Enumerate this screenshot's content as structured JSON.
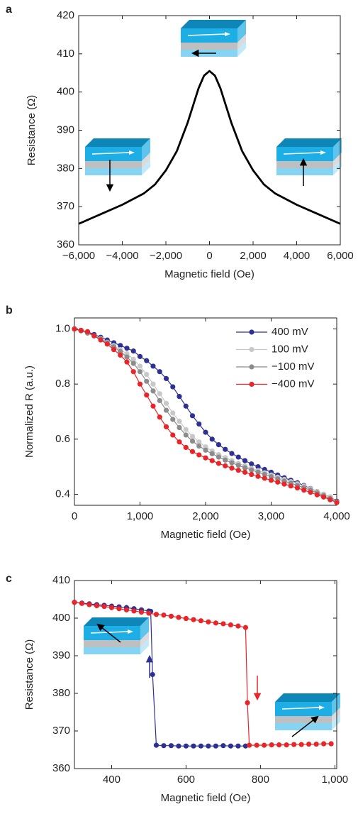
{
  "chart_data": [
    {
      "type": "line",
      "label": "a",
      "xlabel": "Magnetic field (Oe)",
      "ylabel": "Resistance (Ω)",
      "x": [
        -6000,
        -5000,
        -4000,
        -3000,
        -2500,
        -2000,
        -1500,
        -1000,
        -750,
        -500,
        -250,
        0,
        250,
        500,
        750,
        1000,
        1500,
        2000,
        2500,
        3000,
        4000,
        5000,
        6000
      ],
      "series": [
        {
          "color": "#000000",
          "values": [
            365.5,
            368,
            370.5,
            373.5,
            375.8,
            379.5,
            384.5,
            392,
            396.5,
            401,
            404.3,
            405.5,
            404.3,
            401,
            396.5,
            392,
            384.5,
            379.5,
            375.8,
            373.5,
            370.5,
            368,
            365.5
          ]
        }
      ],
      "xlim": [
        -6000,
        6000
      ],
      "xticks": [
        {
          "value": -6000,
          "label": "−6,000"
        },
        {
          "value": -4000,
          "label": "−4,000"
        },
        {
          "value": -2000,
          "label": "−2,000"
        },
        0,
        {
          "value": 2000,
          "label": "2,000"
        },
        {
          "value": 4000,
          "label": "4,000"
        },
        {
          "value": 6000,
          "label": "6,000"
        }
      ],
      "ylim": [
        360,
        420
      ],
      "yticks": [
        360,
        370,
        380,
        390,
        400,
        410,
        420
      ],
      "markers": false
    },
    {
      "type": "line",
      "label": "b",
      "xlabel": "Magnetic field (Oe)",
      "ylabel": "Normalized R (a.u.)",
      "x": [
        0,
        100,
        200,
        300,
        400,
        500,
        600,
        700,
        800,
        900,
        1000,
        1100,
        1200,
        1300,
        1400,
        1500,
        1600,
        1700,
        1800,
        1900,
        2000,
        2100,
        2200,
        2300,
        2400,
        2500,
        2600,
        2700,
        2800,
        2900,
        3000,
        3100,
        3200,
        3300,
        3400,
        3500,
        3600,
        3700,
        3800,
        3900,
        4000
      ],
      "series": [
        {
          "name": "400 mV",
          "color": "#2e3192",
          "values": [
            1.0,
            0.995,
            0.99,
            0.98,
            0.97,
            0.96,
            0.95,
            0.94,
            0.93,
            0.92,
            0.9,
            0.885,
            0.865,
            0.845,
            0.82,
            0.79,
            0.755,
            0.72,
            0.685,
            0.655,
            0.625,
            0.6,
            0.58,
            0.563,
            0.548,
            0.535,
            0.522,
            0.51,
            0.5,
            0.49,
            0.48,
            0.47,
            0.46,
            0.451,
            0.442,
            0.432,
            0.421,
            0.41,
            0.4,
            0.39,
            0.375
          ]
        },
        {
          "name": "100 mV",
          "color": "#c8c8c8",
          "values": [
            1.0,
            0.993,
            0.985,
            0.975,
            0.965,
            0.952,
            0.94,
            0.925,
            0.91,
            0.89,
            0.865,
            0.835,
            0.8,
            0.765,
            0.73,
            0.695,
            0.665,
            0.635,
            0.61,
            0.59,
            0.572,
            0.557,
            0.544,
            0.533,
            0.522,
            0.512,
            0.503,
            0.494,
            0.486,
            0.478,
            0.47,
            0.462,
            0.454,
            0.446,
            0.438,
            0.43,
            0.42,
            0.41,
            0.4,
            0.39,
            0.372
          ]
        },
        {
          "name": "−100 mV",
          "color": "#8c8c8c",
          "values": [
            1.0,
            0.993,
            0.985,
            0.975,
            0.963,
            0.95,
            0.935,
            0.918,
            0.898,
            0.875,
            0.845,
            0.81,
            0.775,
            0.74,
            0.705,
            0.672,
            0.642,
            0.615,
            0.593,
            0.575,
            0.56,
            0.547,
            0.535,
            0.524,
            0.514,
            0.505,
            0.496,
            0.488,
            0.48,
            0.472,
            0.464,
            0.456,
            0.448,
            0.44,
            0.432,
            0.424,
            0.415,
            0.405,
            0.395,
            0.385,
            0.37
          ]
        },
        {
          "name": "−400 mV",
          "color": "#e8262a",
          "values": [
            1.0,
            0.995,
            0.99,
            0.975,
            0.96,
            0.945,
            0.925,
            0.905,
            0.88,
            0.845,
            0.8,
            0.76,
            0.72,
            0.68,
            0.645,
            0.615,
            0.59,
            0.57,
            0.555,
            0.543,
            0.532,
            0.522,
            0.512,
            0.503,
            0.495,
            0.487,
            0.48,
            0.472,
            0.465,
            0.458,
            0.451,
            0.444,
            0.437,
            0.43,
            0.423,
            0.415,
            0.407,
            0.398,
            0.39,
            0.38,
            0.37
          ]
        }
      ],
      "xlim": [
        0,
        4000
      ],
      "xticks": [
        0,
        {
          "value": 1000,
          "label": "1,000"
        },
        {
          "value": 2000,
          "label": "2,000"
        },
        {
          "value": 3000,
          "label": "3,000"
        },
        {
          "value": 4000,
          "label": "4,000"
        }
      ],
      "ylim": [
        0.36,
        1.04
      ],
      "yticks": [
        0.4,
        0.6,
        0.8,
        {
          "value": 1,
          "label": "1.0"
        }
      ],
      "markers": true,
      "legend": "upper right"
    },
    {
      "type": "line",
      "label": "c",
      "xlabel": "Magnetic field (Oe)",
      "ylabel": "Resistance (Ω)",
      "series": [
        {
          "color": "#2e3192",
          "x": [
            300,
            320,
            340,
            360,
            380,
            400,
            420,
            440,
            460,
            480,
            500,
            505,
            510,
            520,
            540,
            560,
            580,
            600,
            620,
            640,
            660,
            680,
            700,
            720,
            740,
            760
          ],
          "values": [
            404.2,
            404,
            403.8,
            403.6,
            403.4,
            403.2,
            403,
            402.8,
            402.5,
            402.2,
            401.9,
            401.8,
            385,
            366.2,
            366.1,
            366.1,
            366,
            366,
            366,
            366,
            366,
            366,
            366.1,
            366,
            366,
            366
          ]
        },
        {
          "color": "#e8262a",
          "x": [
            300,
            320,
            340,
            360,
            380,
            400,
            420,
            440,
            460,
            480,
            500,
            520,
            540,
            560,
            580,
            600,
            620,
            640,
            660,
            680,
            700,
            720,
            740,
            760,
            765,
            770,
            790,
            810,
            830,
            850,
            870,
            890,
            910,
            930,
            950,
            970,
            990
          ],
          "values": [
            404.2,
            403.9,
            403.6,
            403.3,
            403.1,
            402.8,
            402.5,
            402.2,
            401.9,
            401.6,
            401.3,
            401,
            400.8,
            400.5,
            400.2,
            399.9,
            399.6,
            399.3,
            399,
            398.7,
            398.5,
            398.2,
            397.9,
            397.5,
            377.5,
            366.2,
            366.2,
            366.2,
            366.3,
            366.3,
            366.3,
            366.4,
            366.4,
            366.5,
            366.5,
            366.6,
            366.6
          ]
        }
      ],
      "xlim": [
        300,
        1005
      ],
      "xticks": [
        400,
        600,
        800,
        {
          "value": 1000,
          "label": "1,000"
        }
      ],
      "ylim": [
        360,
        410
      ],
      "yticks": [
        360,
        370,
        380,
        390,
        400,
        410
      ],
      "markers": true
    }
  ]
}
